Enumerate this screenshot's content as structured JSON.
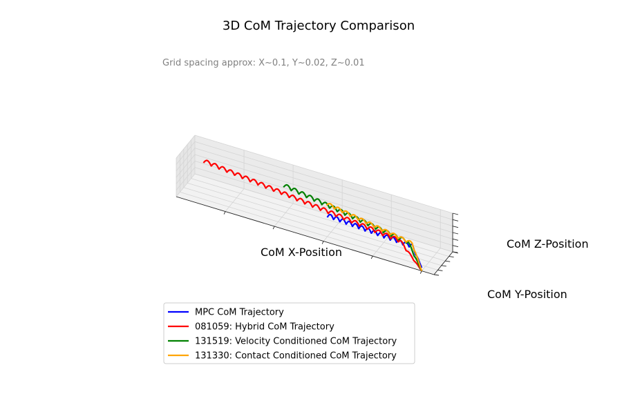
{
  "chart_data": {
    "type": "line",
    "projection": "3d",
    "title": "3D CoM Trajectory Comparison",
    "subtitle_note": "Grid spacing approx: X~0.1, Y~0.02, Z~0.01",
    "xlabel": "CoM X-Position",
    "ylabel": "CoM Y-Position",
    "zlabel": "CoM Z-Position",
    "xlim": [
      -1.0,
      0.05
    ],
    "ylim": [
      0.0,
      0.1
    ],
    "zlim": [
      0.0,
      0.06
    ],
    "grid": true,
    "tick_labels_shown": false,
    "legend_position": "lower-left",
    "series": [
      {
        "name": "MPC CoM Trajectory",
        "color": "#0000ff",
        "x_start": -0.4,
        "x_end": 0.0,
        "y_start": 0.02,
        "y_end": 0.0,
        "z_mean": 0.03,
        "z_amplitude": 0.006,
        "cycles": 15,
        "drop_to_z": 0.005
      },
      {
        "name": "081059: Hybrid CoM Trajectory",
        "color": "#ff0000",
        "x_start": -0.95,
        "x_end": 0.0,
        "y_start": 0.08,
        "y_end": 0.0,
        "z_mean": 0.03,
        "z_amplitude": 0.006,
        "cycles": 28,
        "drop_to_z": 0.0
      },
      {
        "name": "131519: Velocity Conditioned CoM Trajectory",
        "color": "#008000",
        "x_start": -0.62,
        "x_end": 0.0,
        "y_start": 0.075,
        "y_end": 0.0,
        "z_mean": 0.032,
        "z_amplitude": 0.006,
        "cycles": 18,
        "drop_to_z": 0.0
      },
      {
        "name": "131330: Contact Conditioned CoM Trajectory",
        "color": "#ffa500",
        "x_start": -0.43,
        "x_end": 0.0,
        "y_start": 0.055,
        "y_end": 0.0,
        "z_mean": 0.033,
        "z_amplitude": 0.005,
        "cycles": 12,
        "drop_to_z": 0.0
      }
    ]
  }
}
